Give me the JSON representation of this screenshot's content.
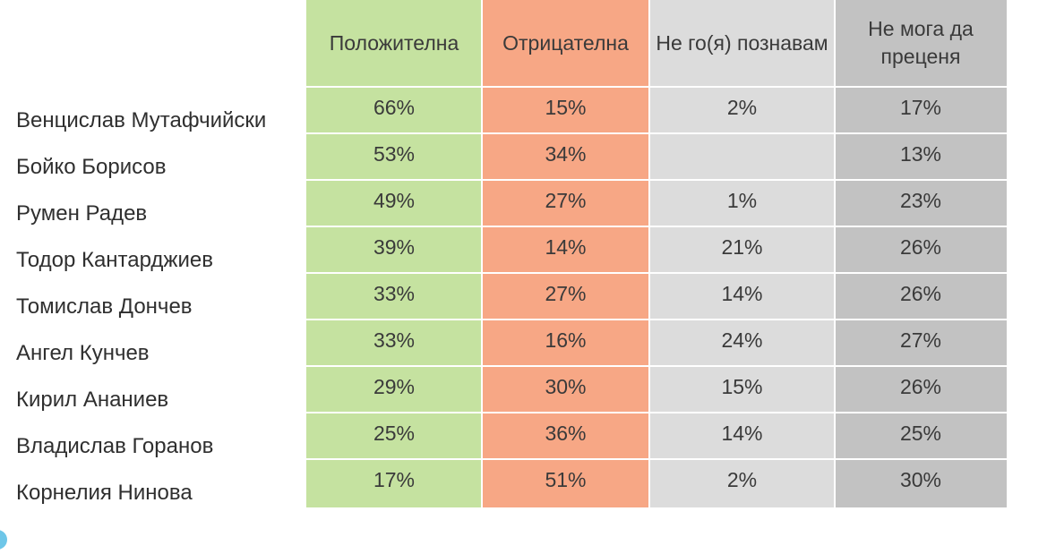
{
  "chart_data": {
    "type": "table",
    "columns": [
      "Положителна",
      "Отрицателна",
      "Не го(я) познавам",
      "Не мога да преценя"
    ],
    "header_lines": [
      [
        "Положителна"
      ],
      [
        "Отрицателна"
      ],
      [
        "Не го(я) познавам"
      ],
      [
        "Не мога да",
        "преценя"
      ]
    ],
    "column_colors": [
      "#c5e2a0",
      "#f7a785",
      "#dcdcdc",
      "#c2c2c2"
    ],
    "rows": [
      {
        "name": "Венцислав Мутафчийски",
        "values": [
          "66%",
          "15%",
          "2%",
          "17%"
        ]
      },
      {
        "name": "Бойко Борисов",
        "values": [
          "53%",
          "34%",
          "",
          "13%"
        ]
      },
      {
        "name": "Румен Радев",
        "values": [
          "49%",
          "27%",
          "1%",
          "23%"
        ]
      },
      {
        "name": "Тодор Кантарджиев",
        "values": [
          "39%",
          "14%",
          "21%",
          "26%"
        ]
      },
      {
        "name": "Томислав Дончев",
        "values": [
          "33%",
          "27%",
          "14%",
          "26%"
        ]
      },
      {
        "name": "Ангел Кунчев",
        "values": [
          "33%",
          "16%",
          "24%",
          "27%"
        ]
      },
      {
        "name": "Кирил Ананиев",
        "values": [
          "29%",
          "30%",
          "15%",
          "26%"
        ]
      },
      {
        "name": "Владислав Горанов",
        "values": [
          "25%",
          "36%",
          "14%",
          "25%"
        ]
      },
      {
        "name": "Корнелия Нинова",
        "values": [
          "17%",
          "51%",
          "2%",
          "30%"
        ]
      }
    ]
  }
}
